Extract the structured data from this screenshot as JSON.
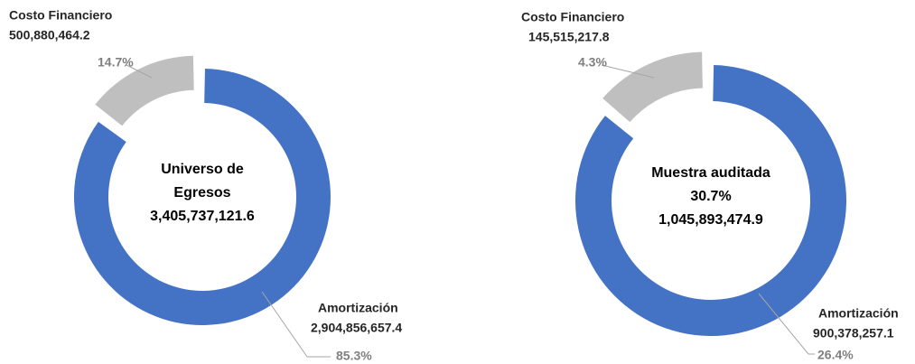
{
  "chart_data": [
    {
      "type": "pie",
      "categories": [
        "Costo Financiero",
        "Amortización"
      ],
      "values": [
        500880464.2,
        2904856657.4
      ],
      "value_labels": [
        "500,880,464.2",
        "2,904,856,657.4"
      ],
      "percent_labels": [
        "14.7%",
        "85.3%"
      ],
      "colors": [
        "#bfbfbf",
        "#4472c4"
      ],
      "center_label": [
        "Universo de",
        "Egresos",
        "3,405,737,121.6"
      ]
    },
    {
      "type": "pie",
      "categories": [
        "Costo Financiero",
        "Amortización"
      ],
      "values": [
        145515217.8,
        900378257.1
      ],
      "value_labels": [
        "145,515,217.8",
        "900,378,257.1"
      ],
      "percent_labels": [
        "4.3%",
        "26.4%"
      ],
      "colors": [
        "#bfbfbf",
        "#4472c4"
      ],
      "center_label": [
        "Muestra auditada",
        "30.7%",
        "1,045,893,474.9"
      ]
    }
  ]
}
